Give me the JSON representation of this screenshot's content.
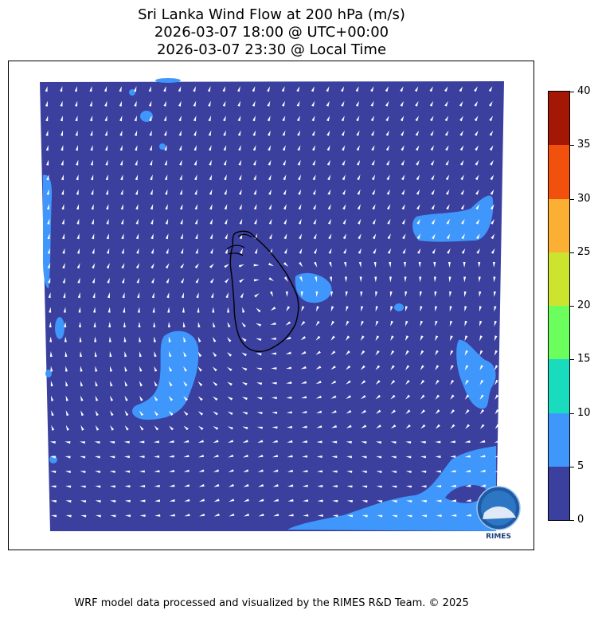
{
  "title": {
    "line1": "Sri Lanka Wind Flow at 200 hPa (m/s)",
    "line2": "2026-03-07 18:00 @ UTC+00:00",
    "line3": "2026-03-07 23:30 @ Local Time"
  },
  "colorbar": {
    "levels": [
      0,
      5,
      10,
      15,
      20,
      25,
      30,
      35,
      40
    ],
    "colors": [
      "#3b3f9e",
      "#3f97fb",
      "#19dcbf",
      "#6cfe5c",
      "#cde42f",
      "#fbb033",
      "#f2500d",
      "#a41704"
    ],
    "labels": [
      "0",
      "5",
      "10",
      "15",
      "20",
      "25",
      "30",
      "35",
      "40"
    ]
  },
  "field": {
    "background_color": "#3b3f9e",
    "highlight_color": "#3f97fb",
    "arrow_color": "#ffffff",
    "coastline_color": "#000000"
  },
  "logo": {
    "text": "RIMES"
  },
  "footer": {
    "text": "WRF model data processed and visualized by the RIMES R&D Team. © 2025"
  }
}
